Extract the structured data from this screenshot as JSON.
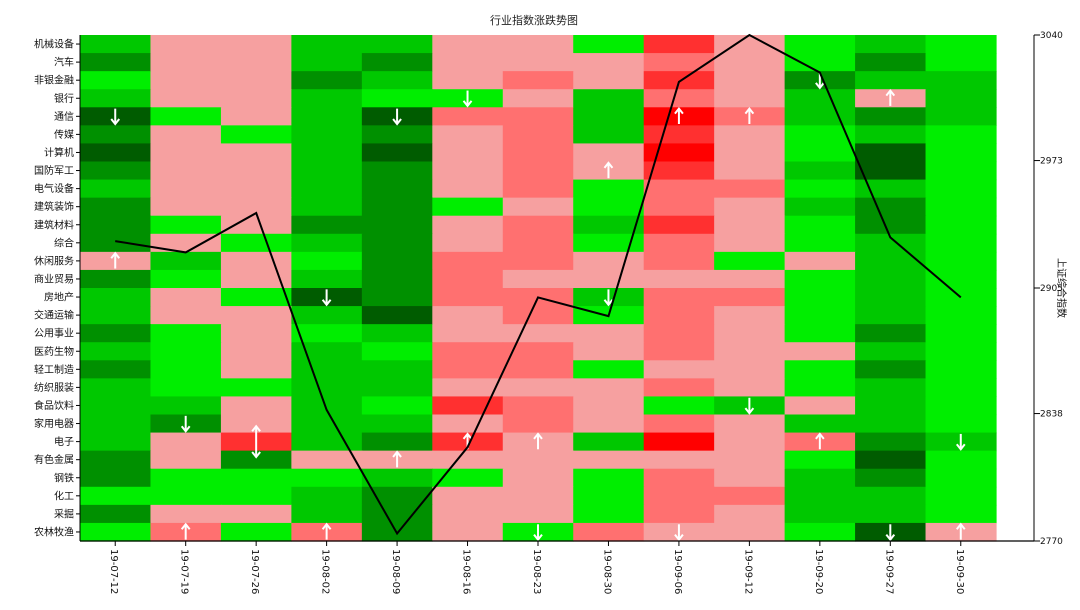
{
  "chart_data": {
    "type": "heatmap",
    "title": "行业指数涨跌势图",
    "right_axis_label": "上证综合指数",
    "right_axis_ticks": [
      3040,
      2973,
      2905,
      2838,
      2770
    ],
    "right_axis_range": [
      2770,
      3040
    ],
    "dates": [
      "19-07-12",
      "19-07-19",
      "19-07-26",
      "19-08-02",
      "19-08-09",
      "19-08-16",
      "19-08-23",
      "19-08-30",
      "19-09-06",
      "19-09-12",
      "19-09-20",
      "19-09-27",
      "19-09-30"
    ],
    "industries": [
      "机械设备",
      "汽车",
      "非银金融",
      "银行",
      "通信",
      "传媒",
      "计算机",
      "国防军工",
      "电气设备",
      "建筑装饰",
      "建筑材料",
      "综合",
      "休闲服务",
      "商业贸易",
      "房地产",
      "交通运输",
      "公用事业",
      "医药生物",
      "轻工制造",
      "纺织服装",
      "食品饮料",
      "家用电器",
      "电子",
      "有色金属",
      "钢铁",
      "化工",
      "采掘",
      "农林牧渔"
    ],
    "color_scale": {
      "-3": "#005c00",
      "-2": "#009000",
      "-1": "#00c800",
      "0": "#00ee00",
      "1": "#f6a0a0",
      "2": "#ff7070",
      "3": "#ff3030",
      "4": "#ff0000"
    },
    "matrix": [
      [
        -1,
        1,
        1,
        -1,
        -1,
        1,
        1,
        0,
        3,
        1,
        0,
        -1,
        0
      ],
      [
        -2,
        1,
        1,
        -1,
        -2,
        1,
        1,
        1,
        2,
        1,
        0,
        -2,
        0
      ],
      [
        0,
        1,
        1,
        -2,
        -1,
        1,
        2,
        1,
        3,
        1,
        -2,
        -1,
        -1
      ],
      [
        -1,
        1,
        1,
        -1,
        0,
        0,
        1,
        -1,
        2,
        1,
        -1,
        1,
        -1
      ],
      [
        -3,
        0,
        1,
        -1,
        -3,
        2,
        2,
        -1,
        4,
        2,
        -1,
        -2,
        -1
      ],
      [
        -2,
        1,
        0,
        -1,
        -2,
        1,
        2,
        -1,
        3,
        1,
        0,
        -1,
        0
      ],
      [
        -3,
        1,
        1,
        -1,
        -3,
        1,
        2,
        1,
        4,
        1,
        0,
        -3,
        0
      ],
      [
        -2,
        1,
        1,
        -1,
        -2,
        1,
        2,
        1,
        3,
        1,
        -1,
        -3,
        0
      ],
      [
        -1,
        1,
        1,
        -1,
        -2,
        1,
        2,
        0,
        2,
        2,
        0,
        -1,
        0
      ],
      [
        -2,
        1,
        1,
        -1,
        -2,
        0,
        1,
        0,
        2,
        1,
        -1,
        -2,
        0
      ],
      [
        -2,
        0,
        1,
        -2,
        -2,
        1,
        2,
        -1,
        3,
        1,
        0,
        -2,
        0
      ],
      [
        -2,
        1,
        0,
        -1,
        -2,
        1,
        2,
        0,
        2,
        1,
        0,
        -1,
        0
      ],
      [
        1,
        -1,
        1,
        0,
        -2,
        2,
        2,
        1,
        2,
        0,
        1,
        -1,
        0
      ],
      [
        -2,
        0,
        1,
        -1,
        -2,
        2,
        1,
        1,
        1,
        1,
        0,
        -1,
        0
      ],
      [
        -1,
        1,
        0,
        -3,
        -2,
        2,
        2,
        -1,
        2,
        2,
        0,
        -1,
        0
      ],
      [
        -1,
        1,
        1,
        -1,
        -3,
        1,
        2,
        0,
        2,
        1,
        0,
        -1,
        0
      ],
      [
        -2,
        0,
        1,
        0,
        -1,
        1,
        1,
        1,
        2,
        1,
        0,
        -2,
        0
      ],
      [
        -1,
        0,
        1,
        -1,
        0,
        2,
        2,
        1,
        2,
        1,
        1,
        -1,
        0
      ],
      [
        -2,
        0,
        1,
        -1,
        -1,
        2,
        2,
        0,
        1,
        1,
        0,
        -2,
        0
      ],
      [
        -1,
        0,
        0,
        -1,
        -1,
        1,
        1,
        1,
        2,
        1,
        0,
        -1,
        0
      ],
      [
        -1,
        -1,
        1,
        -1,
        0,
        3,
        2,
        1,
        0,
        -1,
        1,
        -1,
        0
      ],
      [
        -1,
        -2,
        1,
        -1,
        -1,
        1,
        2,
        1,
        2,
        1,
        -1,
        -1,
        0
      ],
      [
        -1,
        1,
        3,
        -1,
        -2,
        3,
        1,
        -1,
        4,
        1,
        2,
        -2,
        -1
      ],
      [
        -2,
        1,
        -2,
        1,
        1,
        1,
        1,
        1,
        1,
        1,
        0,
        -3,
        0
      ],
      [
        -2,
        0,
        0,
        0,
        -1,
        0,
        1,
        0,
        2,
        1,
        -1,
        -2,
        0
      ],
      [
        0,
        0,
        0,
        -1,
        -2,
        1,
        1,
        0,
        2,
        2,
        -1,
        -1,
        0
      ],
      [
        -2,
        1,
        1,
        -1,
        -2,
        1,
        1,
        0,
        2,
        1,
        -1,
        -1,
        0
      ],
      [
        0,
        2,
        0,
        2,
        -2,
        1,
        0,
        2,
        1,
        1,
        0,
        -3,
        1
      ]
    ],
    "arrows": [
      {
        "row": 4,
        "col": 0,
        "dir": "down"
      },
      {
        "row": 12,
        "col": 0,
        "dir": "up"
      },
      {
        "row": 21,
        "col": 1,
        "dir": "down"
      },
      {
        "row": 27,
        "col": 1,
        "dir": "up"
      },
      {
        "row": 22,
        "col": 2,
        "dir": "updown"
      },
      {
        "row": 14,
        "col": 3,
        "dir": "down"
      },
      {
        "row": 27,
        "col": 3,
        "dir": "up"
      },
      {
        "row": 4,
        "col": 4,
        "dir": "down"
      },
      {
        "row": 23,
        "col": 4,
        "dir": "up"
      },
      {
        "row": 3,
        "col": 5,
        "dir": "down"
      },
      {
        "row": 22,
        "col": 5,
        "dir": "up"
      },
      {
        "row": 22,
        "col": 6,
        "dir": "up"
      },
      {
        "row": 27,
        "col": 6,
        "dir": "down"
      },
      {
        "row": 7,
        "col": 7,
        "dir": "up"
      },
      {
        "row": 14,
        "col": 7,
        "dir": "down"
      },
      {
        "row": 4,
        "col": 8,
        "dir": "up"
      },
      {
        "row": 27,
        "col": 8,
        "dir": "down"
      },
      {
        "row": 4,
        "col": 9,
        "dir": "up"
      },
      {
        "row": 20,
        "col": 9,
        "dir": "down"
      },
      {
        "row": 2,
        "col": 10,
        "dir": "down"
      },
      {
        "row": 22,
        "col": 10,
        "dir": "up"
      },
      {
        "row": 3,
        "col": 11,
        "dir": "up"
      },
      {
        "row": 27,
        "col": 11,
        "dir": "down"
      },
      {
        "row": 22,
        "col": 12,
        "dir": "down"
      },
      {
        "row": 27,
        "col": 12,
        "dir": "up"
      }
    ],
    "line_series": {
      "values": [
        2930,
        2924,
        2945,
        2840,
        2774,
        2820,
        2900,
        2890,
        3015,
        3040,
        3020,
        2932,
        2900
      ]
    }
  }
}
